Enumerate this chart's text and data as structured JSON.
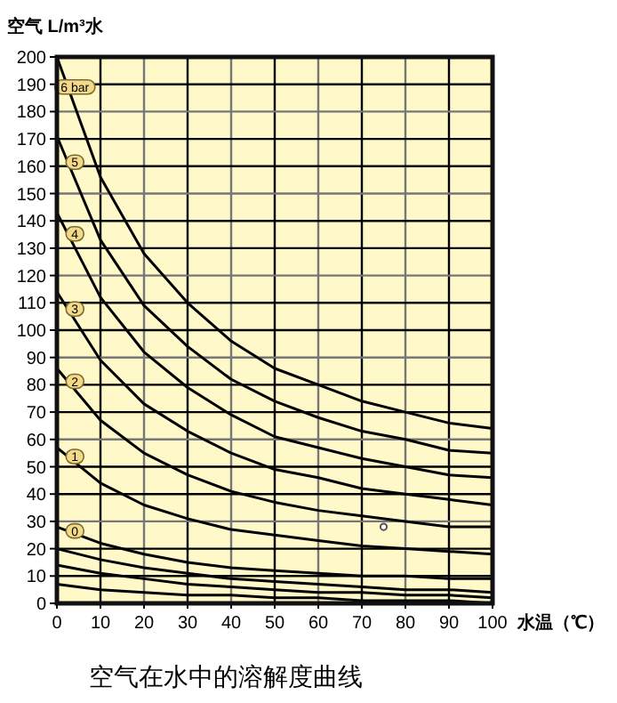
{
  "chart_data": {
    "type": "line",
    "xlabel": "水温（℃）",
    "ylabel": "空气 L/m³水",
    "annotations": [
      "空气在水中的溶解度曲线"
    ],
    "x": [
      0,
      10,
      20,
      30,
      40,
      50,
      60,
      70,
      80,
      90,
      100
    ],
    "series": [
      {
        "name": "6 bar",
        "color": "#000000",
        "values": [
          200,
          156,
          128,
          110,
          96,
          86,
          80,
          74,
          70,
          66,
          64
        ]
      },
      {
        "name": "5",
        "color": "#000000",
        "values": [
          171,
          133,
          109,
          94,
          82,
          74,
          68,
          63,
          60,
          56,
          55
        ]
      },
      {
        "name": "4",
        "color": "#000000",
        "values": [
          143,
          112,
          92,
          79,
          69,
          61,
          57,
          53,
          50,
          47,
          46
        ]
      },
      {
        "name": "3",
        "color": "#000000",
        "values": [
          114,
          89,
          73,
          63,
          55,
          49,
          46,
          42,
          40,
          38,
          36
        ]
      },
      {
        "name": "2",
        "color": "#000000",
        "values": [
          86,
          67,
          55,
          47,
          41,
          37,
          34,
          32,
          30,
          28,
          28
        ]
      },
      {
        "name": "1",
        "color": "#000000",
        "values": [
          57,
          44,
          36,
          31,
          27,
          25,
          23,
          21,
          20,
          19,
          18
        ]
      },
      {
        "name": "0",
        "color": "#000000",
        "values": [
          28,
          22,
          18,
          15,
          13,
          12,
          11,
          10,
          10,
          9,
          9
        ]
      },
      {
        "color": "#000000",
        "values": [
          20,
          16,
          13,
          11,
          9,
          8,
          7,
          6,
          5,
          5,
          4
        ]
      },
      {
        "color": "#000000",
        "values": [
          14,
          11,
          9,
          7,
          6,
          5,
          4,
          4,
          3,
          3,
          2
        ]
      },
      {
        "color": "#000000",
        "values": [
          7,
          5,
          4,
          3,
          3,
          2,
          2,
          1,
          1,
          1,
          0
        ]
      },
      {
        "type": "scatter",
        "color": "#555555",
        "x": [
          75
        ],
        "values": [
          28
        ]
      }
    ],
    "xlim": [
      0,
      100
    ],
    "ylim": [
      0,
      200
    ],
    "xticks": [
      0,
      10,
      20,
      30,
      40,
      50,
      60,
      70,
      80,
      90,
      100
    ],
    "yticks": [
      0,
      10,
      20,
      30,
      40,
      50,
      60,
      70,
      80,
      90,
      100,
      110,
      120,
      130,
      140,
      150,
      160,
      170,
      180,
      190,
      200
    ],
    "grid": true
  }
}
